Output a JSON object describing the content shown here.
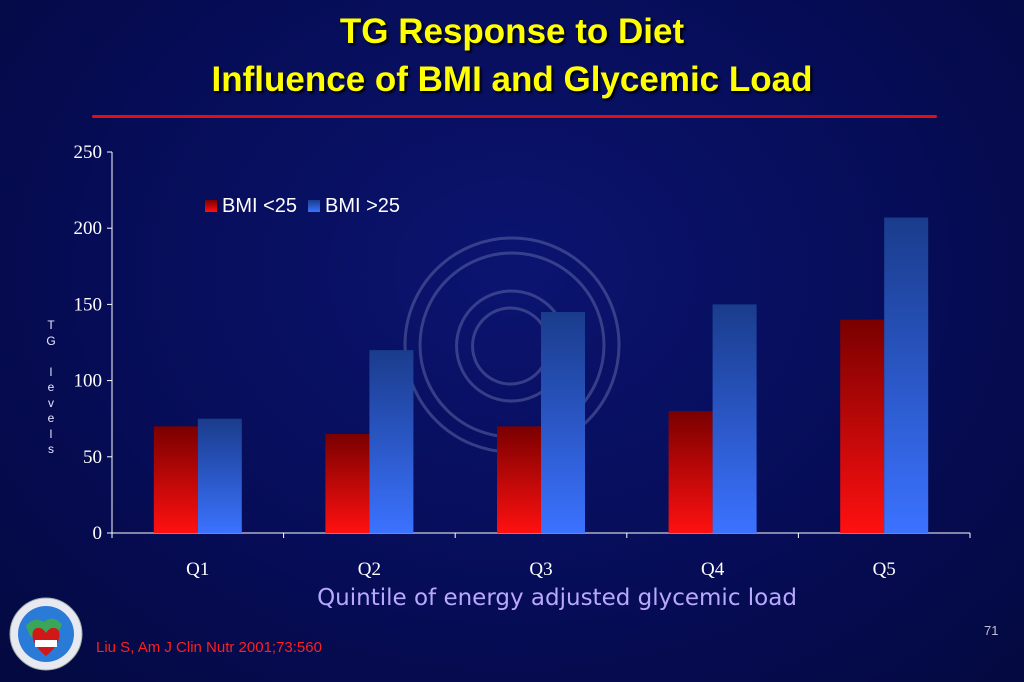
{
  "slide": {
    "title_line1": "TG Response to Diet",
    "title_line2": "Influence of BMI and Glycemic Load",
    "citation": "Liu S,  Am J Clin Nutr 2001;73:560",
    "page_number": "71"
  },
  "colors": {
    "background": "#060c55",
    "title": "#ffff00",
    "rule": "#e01010",
    "bmi_low": "#e00000",
    "bmi_high": "#2f6dff",
    "xlabel": "#b9a8ff",
    "citation": "#ff1f1f"
  },
  "chart_data": {
    "type": "bar",
    "title": "",
    "xlabel": "Quintile of energy adjusted glycemic load",
    "ylabel": "TG levels",
    "categories": [
      "Q1",
      "Q2",
      "Q3",
      "Q4",
      "Q5"
    ],
    "ylim": [
      0,
      250
    ],
    "yticks": [
      0,
      50,
      100,
      150,
      200,
      250
    ],
    "grid": false,
    "legend_position": "top-left",
    "series": [
      {
        "name": "BMI <25",
        "color": "#e00000",
        "values": [
          70,
          65,
          70,
          80,
          140
        ]
      },
      {
        "name": "BMI >25",
        "color": "#2f6dff",
        "values": [
          75,
          120,
          145,
          150,
          207
        ]
      }
    ]
  }
}
